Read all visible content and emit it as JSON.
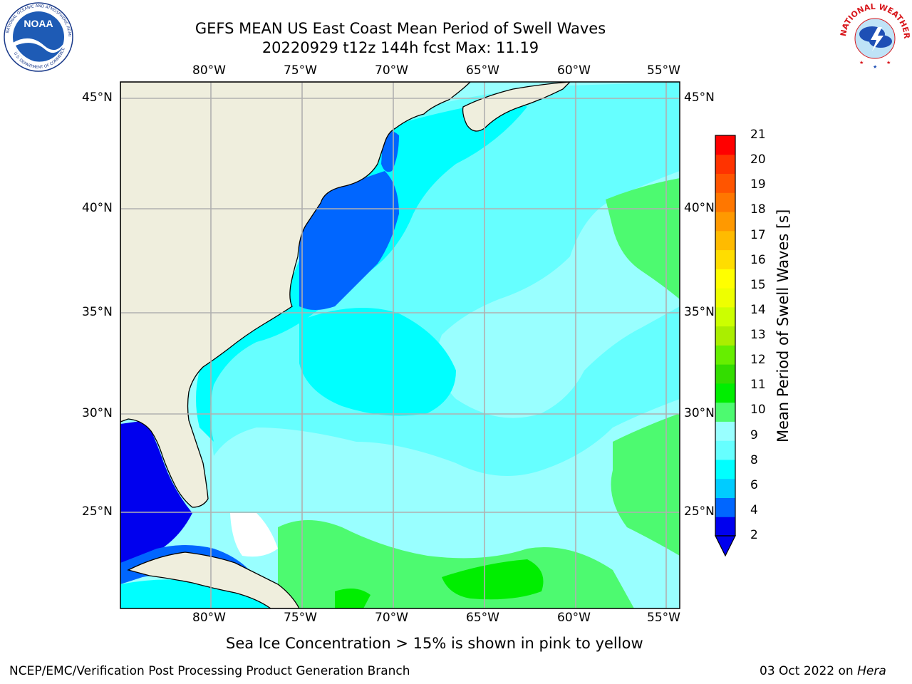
{
  "title": {
    "line1": "GEFS MEAN US East Coast Mean Period of Swell Waves",
    "line2": "20220929 t12z 144h fcst   Max: 11.19"
  },
  "map": {
    "lon_ticks": [
      "80°W",
      "75°W",
      "70°W",
      "65°W",
      "60°W",
      "55°W"
    ],
    "lat_ticks": [
      "45°N",
      "40°N",
      "35°N",
      "30°N",
      "25°N"
    ],
    "land_color": "#efeedd",
    "grid_color": "#b0b0b0"
  },
  "colorbar": {
    "label": "Mean Period of Swell Waves [s]",
    "ticks": [
      "2",
      "4",
      "6",
      "8",
      "9",
      "10",
      "11",
      "12",
      "13",
      "14",
      "15",
      "16",
      "17",
      "18",
      "19",
      "20",
      "21"
    ],
    "colors": [
      "#0000ee",
      "#0066ff",
      "#00ccff",
      "#00ffff",
      "#66ffff",
      "#99ffff",
      "#4dfa70",
      "#00ee00",
      "#33dd00",
      "#66ee00",
      "#aaee00",
      "#ccff00",
      "#eeff00",
      "#ffff00",
      "#ffdd00",
      "#ffbb00",
      "#ff9900",
      "#ff7700",
      "#ff5500",
      "#ff3300",
      "#ff0000"
    ],
    "under_color": "#0000ee"
  },
  "notes": {
    "sea_ice": "Sea Ice Concentration > 15% is shown in pink to yellow"
  },
  "footer": {
    "left": "NCEP/EMC/Verification Post Processing Product Generation Branch",
    "right_date": "03 Oct 2022 on ",
    "right_host": "Hera"
  },
  "logos": {
    "left": "NOAA",
    "right": "NATIONAL WEATHER SERVICE"
  }
}
